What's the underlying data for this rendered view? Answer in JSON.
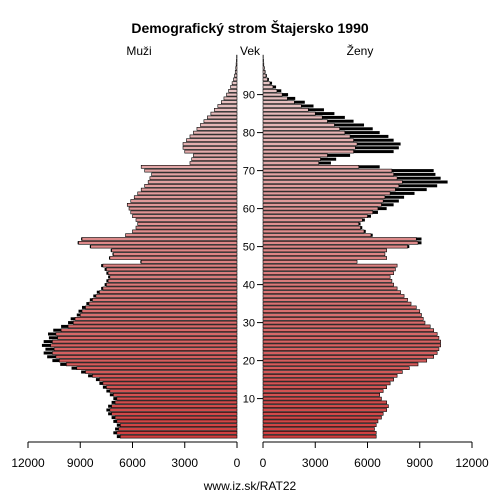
{
  "chart_data": {
    "type": "bar",
    "orientation": "horizontal-butterfly",
    "title": "Demografický strom Štajersko 1990",
    "left_label": "Muži",
    "center_label": "Vek",
    "right_label": "Ženy",
    "source": "www.iz.sk/RAT22",
    "xlim": [
      0,
      12000
    ],
    "x_ticks": [
      0,
      3000,
      6000,
      9000,
      12000
    ],
    "x_tick_labels": [
      "0",
      "3000",
      "6000",
      "9000",
      "12000"
    ],
    "age_ticks": [
      10,
      20,
      30,
      40,
      50,
      60,
      70,
      80,
      90
    ],
    "ages": [
      0,
      1,
      2,
      3,
      4,
      5,
      6,
      7,
      8,
      9,
      10,
      11,
      12,
      13,
      14,
      15,
      16,
      17,
      18,
      19,
      20,
      21,
      22,
      23,
      24,
      25,
      26,
      27,
      28,
      29,
      30,
      31,
      32,
      33,
      34,
      35,
      36,
      37,
      38,
      39,
      40,
      41,
      42,
      43,
      44,
      45,
      46,
      47,
      48,
      49,
      50,
      51,
      52,
      53,
      54,
      55,
      56,
      57,
      58,
      59,
      60,
      61,
      62,
      63,
      64,
      65,
      66,
      67,
      68,
      69,
      70,
      71,
      72,
      73,
      74,
      75,
      76,
      77,
      78,
      79,
      80,
      81,
      82,
      83,
      84,
      85,
      86,
      87,
      88,
      89,
      90,
      91,
      92,
      93,
      94,
      95,
      96,
      97,
      98,
      99,
      100
    ],
    "series": [
      {
        "name": "Muži",
        "values": [
          6700,
          6900,
          6800,
          6700,
          6900,
          7000,
          7200,
          7300,
          7200,
          7000,
          6900,
          7100,
          7300,
          7500,
          7700,
          7900,
          8300,
          8700,
          9200,
          9800,
          10200,
          10400,
          10600,
          10500,
          10700,
          10600,
          10300,
          10400,
          10100,
          9700,
          9400,
          9300,
          9000,
          8900,
          8700,
          8500,
          8300,
          8100,
          7900,
          7700,
          7500,
          7400,
          7300,
          7400,
          7500,
          7700,
          5500,
          7300,
          7100,
          7200,
          8400,
          9100,
          8900,
          6400,
          6000,
          5800,
          5700,
          5800,
          6000,
          6100,
          6200,
          6300,
          6100,
          5900,
          5700,
          5500,
          5300,
          5100,
          5000,
          4900,
          5300,
          5500,
          2700,
          2600,
          2500,
          3000,
          3100,
          3100,
          2900,
          2700,
          2500,
          2300,
          2100,
          1900,
          1700,
          1500,
          1300,
          1100,
          900,
          750,
          600,
          480,
          370,
          280,
          200,
          140,
          100,
          70,
          50,
          30,
          20
        ],
        "excess": [
          200,
          200,
          200,
          200,
          200,
          200,
          200,
          200,
          200,
          200,
          200,
          200,
          200,
          200,
          200,
          200,
          250,
          250,
          300,
          350,
          400,
          500,
          500,
          500,
          500,
          500,
          500,
          450,
          450,
          400,
          300,
          250,
          200,
          200,
          200,
          150,
          150,
          150,
          150,
          100,
          100,
          100,
          100,
          100,
          100,
          100,
          50,
          50,
          50,
          50,
          50,
          50,
          50,
          0,
          0,
          0,
          0,
          0,
          0,
          0,
          0,
          0,
          0,
          0,
          0,
          0,
          0,
          0,
          0,
          0,
          0,
          0,
          0,
          0,
          0,
          0,
          0,
          0,
          0,
          0,
          0,
          0,
          0,
          0,
          0,
          0,
          0,
          0,
          0,
          0,
          0,
          0,
          0,
          0,
          0,
          0,
          0,
          0,
          0,
          0,
          0
        ]
      },
      {
        "name": "Ženy",
        "values": [
          6500,
          6500,
          6400,
          6500,
          6600,
          6800,
          6900,
          7100,
          7200,
          7100,
          6800,
          6700,
          6900,
          7100,
          7300,
          7500,
          7700,
          8000,
          8400,
          8900,
          9400,
          9800,
          10000,
          10100,
          10200,
          10200,
          10100,
          10000,
          9800,
          9600,
          9300,
          9200,
          9100,
          9000,
          8800,
          8500,
          8300,
          8100,
          7900,
          7700,
          7500,
          7400,
          7300,
          7500,
          7600,
          7700,
          5400,
          7100,
          7000,
          7100,
          8300,
          8900,
          8800,
          6200,
          5800,
          5600,
          5500,
          5700,
          6000,
          6300,
          6600,
          6800,
          6900,
          7000,
          7300,
          7600,
          7800,
          8000,
          7700,
          7500,
          7400,
          5500,
          3200,
          3300,
          3700,
          5200,
          5300,
          5400,
          5200,
          5000,
          4700,
          4400,
          4100,
          3700,
          3400,
          3000,
          2600,
          2200,
          1800,
          1400,
          1100,
          800,
          570,
          400,
          260,
          170,
          110,
          70,
          45,
          25,
          15
        ],
        "excess": [
          0,
          0,
          0,
          0,
          0,
          0,
          0,
          0,
          0,
          0,
          0,
          0,
          0,
          0,
          0,
          0,
          0,
          0,
          0,
          0,
          0,
          0,
          0,
          0,
          0,
          0,
          0,
          0,
          0,
          0,
          0,
          0,
          0,
          0,
          0,
          0,
          0,
          0,
          0,
          0,
          0,
          0,
          0,
          0,
          0,
          0,
          0,
          0,
          0,
          0,
          100,
          200,
          300,
          100,
          100,
          100,
          100,
          150,
          200,
          300,
          500,
          700,
          900,
          1100,
          1400,
          1800,
          2200,
          2600,
          2500,
          2400,
          2400,
          1200,
          700,
          900,
          1300,
          2300,
          2500,
          2500,
          2300,
          2200,
          2000,
          1900,
          1700,
          1500,
          1300,
          1100,
          900,
          700,
          600,
          450,
          340,
          250,
          180,
          120,
          80,
          50,
          35,
          25,
          15,
          10,
          5
        ]
      }
    ],
    "colors": {
      "young": "#d04040",
      "old": "#e8c8c8",
      "excess": "#000000",
      "outline": "#000000"
    }
  }
}
